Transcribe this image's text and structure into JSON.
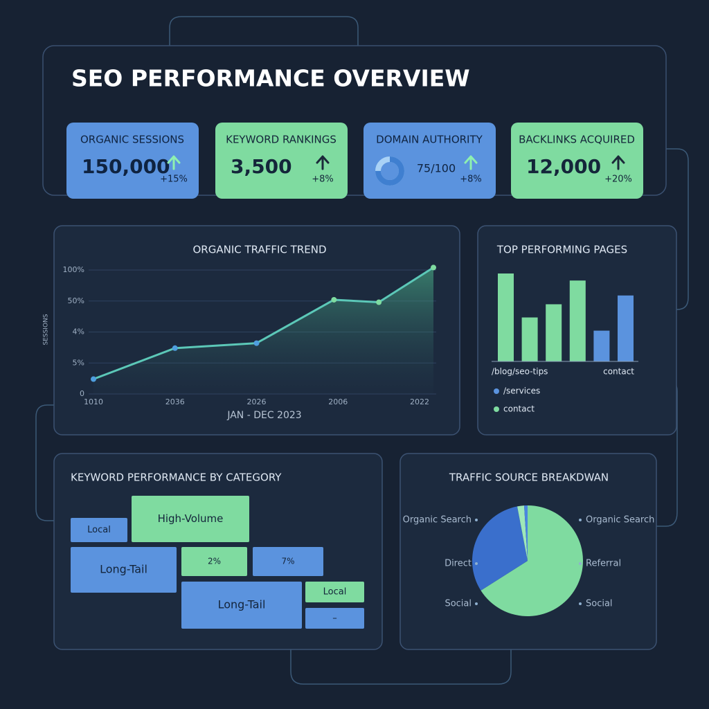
{
  "header": {
    "title": "SEO PERFORMANCE OVERVIEW"
  },
  "kpis": [
    {
      "label": "ORGANIC SESSIONS",
      "value": "150,000",
      "change": "+15%",
      "color": "#5b93de",
      "arrow_color": "#8ef0b0"
    },
    {
      "label": "KEYWORD RANKINGS",
      "value": "3,500",
      "change": "+8%",
      "color": "#7fdba0",
      "arrow_color": "#1b2a3a"
    },
    {
      "label": "DOMAIN AUTHORITY",
      "value": "75/100",
      "change": "+8%",
      "color": "#5b93de",
      "arrow_color": "#8ef0b0",
      "gauge": 75
    },
    {
      "label": "BACKLINKS ACQUIRED",
      "value": "12,000",
      "change": "+20%",
      "color": "#7fdba0",
      "arrow_color": "#1b2a3a"
    }
  ],
  "chart_data": [
    {
      "type": "line",
      "title": "ORGANIC TRAFFIC TREND",
      "x_label": "JAN - DEC 2023",
      "y_label": "SESSIONS",
      "x": [
        0,
        1,
        2,
        2.95,
        3.5,
        4.17
      ],
      "values": [
        12,
        37,
        41,
        76,
        74,
        102
      ],
      "color": "#5cc8b8",
      "xlim": [
        0,
        4.2
      ],
      "xticks": [
        {
          "value": 0,
          "label": "1010"
        },
        {
          "value": 1,
          "label": "2036"
        },
        {
          "value": 2,
          "label": "2026"
        },
        {
          "value": 3,
          "label": "2006"
        },
        {
          "value": 4,
          "label": "2022"
        }
      ],
      "ylim": [
        0,
        105
      ],
      "yticks": [
        0,
        {
          "value": 25,
          "label": "5%"
        },
        {
          "value": 50,
          "label": "4%"
        },
        {
          "value": 75,
          "label": "50%"
        },
        {
          "value": 100,
          "label": "100%"
        }
      ],
      "grid": true
    },
    {
      "type": "bar",
      "title": "TOP PERFORMING PAGES",
      "categories": [
        "/blog/seo-tips",
        null,
        null,
        null,
        null,
        "contact"
      ],
      "values": [
        100,
        50,
        65,
        92,
        35,
        75
      ],
      "colors": [
        "#7fdba0",
        "#7fdba0",
        "#7fdba0",
        "#7fdba0",
        "#5b93de",
        "#5b93de"
      ],
      "ylim": [
        0,
        100
      ],
      "legend": [
        {
          "label": "/services",
          "color": "#5b93de"
        },
        {
          "label": "contact",
          "color": "#7fdba0"
        }
      ]
    },
    {
      "type": "pie",
      "title": "TRAFFIC SOURCE BREAKDWAN",
      "values": [
        66,
        31,
        2,
        1
      ],
      "colors": [
        "#7fdba0",
        "#3a6fcc",
        "#9fe8b8",
        "#4a86e0"
      ],
      "labels_left": [
        "Organic Search",
        "Direct",
        "Social"
      ],
      "labels_right": [
        "Organic Search",
        "Referral",
        "Social"
      ]
    }
  ],
  "treemap": {
    "title": "KEYWORD PERFORMANCE BY CATEGORY",
    "tiles": [
      {
        "label": "Local",
        "color": "#5b93de"
      },
      {
        "label": "High-Volume",
        "color": "#7fdba0"
      },
      {
        "label": "Long-Tail",
        "color": "#5b93de"
      },
      {
        "label": "2%",
        "color": "#7fdba0"
      },
      {
        "label": "7%",
        "color": "#5b93de"
      },
      {
        "label": "Long-Tail",
        "color": "#5b93de"
      },
      {
        "label": "Local",
        "color": "#7fdba0"
      },
      {
        "label": "–",
        "color": "#5b93de"
      }
    ]
  }
}
